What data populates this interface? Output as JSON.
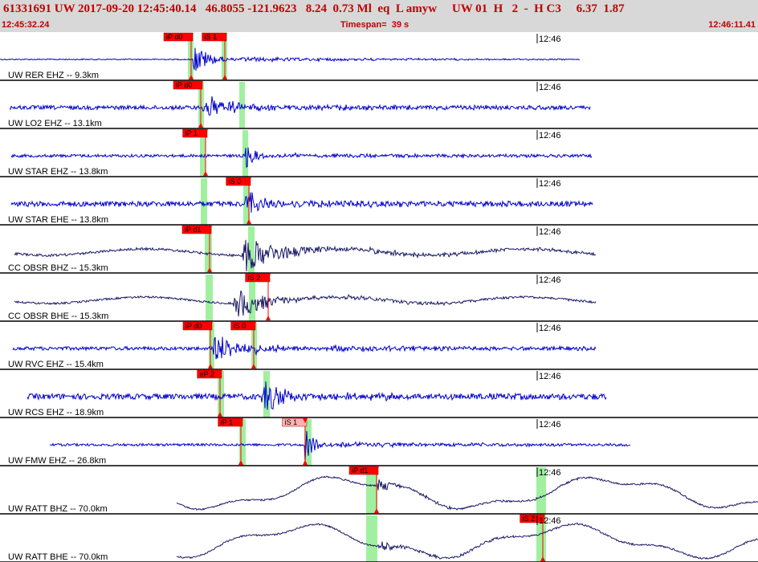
{
  "header": {
    "title": "61331691 UW 2017-09-20 12:45:40.14   46.8055 -121.9623   8.24  0.73 Ml  eq  L amyw     UW 01  H   2  -  H C3     6.37  1.87",
    "start_time": "12:45:32.24",
    "timespan_label": "Timespan=",
    "timespan_value": "39 s",
    "end_time": "12:46:11.41"
  },
  "colors": {
    "header_bg": "#d8d8d8",
    "header_text": "#c00000",
    "trace_blue": "#0000cc",
    "trace_navy": "#1a1a66",
    "pick_red": "#ff0000",
    "pick_pink": "#ffb0b0",
    "window_green": "#a0f0a0"
  },
  "traces": [
    {
      "label": "UW RER EHZ -- 9.3km",
      "time_tick": "12:46",
      "picks": [
        {
          "text": "iP d0",
          "kind": "P"
        },
        {
          "text": "iS 1",
          "kind": "S"
        }
      ]
    },
    {
      "label": "UW LO2 EHZ -- 13.1km",
      "time_tick": "12:46",
      "picks": [
        {
          "text": "iP d0",
          "kind": "P"
        }
      ]
    },
    {
      "label": "UW STAR EHZ -- 13.8km",
      "time_tick": "12:46",
      "picks": [
        {
          "text": "iP 1",
          "kind": "P"
        }
      ]
    },
    {
      "label": "UW STAR EHE -- 13.8km",
      "time_tick": "12:46",
      "picks": [
        {
          "text": "iS 0",
          "kind": "S"
        }
      ]
    },
    {
      "label": "CC OBSR BHZ -- 15.3km",
      "time_tick": "12:46",
      "picks": [
        {
          "text": "iP d1",
          "kind": "P"
        }
      ]
    },
    {
      "label": "CC OBSR BHE -- 15.3km",
      "time_tick": "12:46",
      "picks": [
        {
          "text": "iS 2",
          "kind": "S"
        }
      ]
    },
    {
      "label": "UW RVC EHZ -- 15.4km",
      "time_tick": "12:46",
      "picks": [
        {
          "text": "iP d0",
          "kind": "P"
        },
        {
          "text": "iS 0",
          "kind": "S"
        }
      ]
    },
    {
      "label": "UW RCS EHZ -- 18.9km",
      "time_tick": "12:46",
      "picks": [
        {
          "text": "eP 2",
          "kind": "P"
        }
      ]
    },
    {
      "label": "UW FMW EHZ -- 26.8km",
      "time_tick": "12:46",
      "picks": [
        {
          "text": "iP 1",
          "kind": "P"
        },
        {
          "text": "iS 1",
          "kind": "S",
          "muted": true
        }
      ]
    },
    {
      "label": "UW RATT BHZ -- 70.0km",
      "time_tick": "12:46",
      "picks": [
        {
          "text": "iP d1",
          "kind": "P"
        }
      ]
    },
    {
      "label": "UW RATT BHE -- 70.0km",
      "time_tick": "12:46",
      "picks": [
        {
          "text": "iS 2",
          "kind": "S"
        }
      ]
    }
  ]
}
